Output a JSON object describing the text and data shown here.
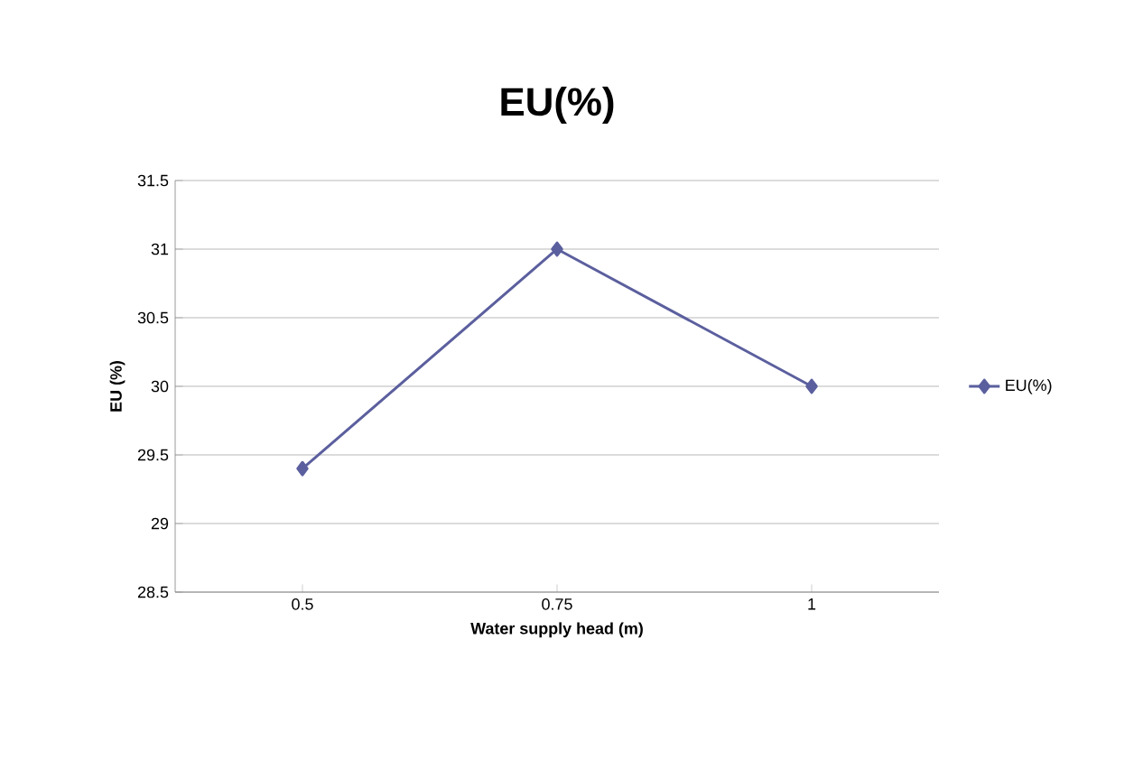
{
  "chart_data": {
    "type": "line",
    "title": "EU(%)",
    "xlabel": "Water supply head (m)",
    "ylabel": "EU (%)",
    "categories": [
      "0.5",
      "0.75",
      "1"
    ],
    "series": [
      {
        "name": "EU(%)",
        "color": "#5b5f9e",
        "values": [
          29.4,
          31.0,
          30.0
        ]
      }
    ],
    "ylim": [
      28.5,
      31.5
    ],
    "yticks": [
      28.5,
      29,
      29.5,
      30,
      30.5,
      31,
      31.5
    ],
    "grid": "y",
    "legend": "right",
    "marker": "diamond",
    "line_style": "solid"
  }
}
